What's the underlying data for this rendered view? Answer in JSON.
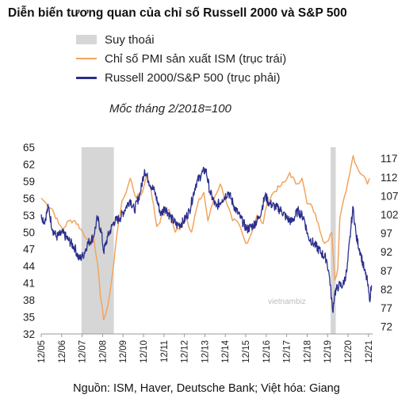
{
  "title": "Diễn biến tương quan của chỉ số Russell 2000 và S&P 500",
  "legend": {
    "recession": "Suy thoái",
    "pmi": "Chỉ số PMI sản xuất ISM (trục trái)",
    "russell": "Russell 2000/S&P 500 (trục phải)"
  },
  "note": "Mốc tháng 2/2018=100",
  "source": "Nguồn: ISM, Haver, Deutsche Bank; Việt hóa: Giang",
  "watermark": "vietnambiz",
  "colors": {
    "pmi": "#f2a45e",
    "russell": "#2b2e8c",
    "recession": "#d6d6d6"
  },
  "chart_data": {
    "type": "line",
    "x_tick_labels": [
      "12/05",
      "12/06",
      "12/07",
      "12/08",
      "12/09",
      "12/10",
      "12/11",
      "12/12",
      "12/13",
      "12/14",
      "12/15",
      "12/16",
      "12/17",
      "12/18",
      "12/19",
      "12/20",
      "12/21"
    ],
    "left_axis": {
      "ticks": [
        "65",
        "62",
        "59",
        "56",
        "53",
        "50",
        "47",
        "44",
        "41",
        "38",
        "35",
        "32"
      ],
      "ylim": [
        32,
        65
      ]
    },
    "right_axis": {
      "ticks": [
        "117",
        "112",
        "107",
        "102",
        "97",
        "92",
        "87",
        "82",
        "77",
        "72"
      ],
      "ylim": [
        70,
        120
      ]
    },
    "recessions": [
      {
        "start": 2007.92,
        "end": 2009.5
      },
      {
        "start": 2020.1,
        "end": 2020.35
      }
    ],
    "series": [
      {
        "name": "Chỉ số PMI sản xuất ISM (trục trái)",
        "axis": "left",
        "points": [
          [
            2005.95,
            56
          ],
          [
            2006.2,
            55
          ],
          [
            2006.5,
            54
          ],
          [
            2006.8,
            51.5
          ],
          [
            2007.0,
            50.5
          ],
          [
            2007.3,
            52
          ],
          [
            2007.6,
            52
          ],
          [
            2007.9,
            50.5
          ],
          [
            2008.1,
            49
          ],
          [
            2008.3,
            48.5
          ],
          [
            2008.5,
            49.5
          ],
          [
            2008.7,
            44.5
          ],
          [
            2008.85,
            38.5
          ],
          [
            2009.0,
            34.5
          ],
          [
            2009.1,
            35.5
          ],
          [
            2009.3,
            39
          ],
          [
            2009.5,
            44.5
          ],
          [
            2009.7,
            51
          ],
          [
            2009.9,
            55.5
          ],
          [
            2010.1,
            57
          ],
          [
            2010.3,
            59.5
          ],
          [
            2010.6,
            56
          ],
          [
            2010.9,
            57
          ],
          [
            2011.1,
            60
          ],
          [
            2011.3,
            58
          ],
          [
            2011.6,
            51
          ],
          [
            2011.9,
            53
          ],
          [
            2012.2,
            54
          ],
          [
            2012.5,
            50
          ],
          [
            2012.8,
            51
          ],
          [
            2013.0,
            53
          ],
          [
            2013.3,
            50
          ],
          [
            2013.6,
            55
          ],
          [
            2013.9,
            57
          ],
          [
            2014.1,
            52
          ],
          [
            2014.4,
            56
          ],
          [
            2014.7,
            58.5
          ],
          [
            2014.95,
            56
          ],
          [
            2015.3,
            52
          ],
          [
            2015.6,
            51.5
          ],
          [
            2015.95,
            48
          ],
          [
            2016.2,
            49.5
          ],
          [
            2016.5,
            53
          ],
          [
            2016.8,
            51.5
          ],
          [
            2017.0,
            55
          ],
          [
            2017.3,
            57
          ],
          [
            2017.6,
            58
          ],
          [
            2017.9,
            59
          ],
          [
            2018.1,
            60.5
          ],
          [
            2018.4,
            58.5
          ],
          [
            2018.7,
            59.5
          ],
          [
            2018.95,
            55
          ],
          [
            2019.2,
            54.5
          ],
          [
            2019.5,
            51.5
          ],
          [
            2019.8,
            48
          ],
          [
            2020.0,
            48.5
          ],
          [
            2020.15,
            50
          ],
          [
            2020.3,
            41.5
          ],
          [
            2020.45,
            43.5
          ],
          [
            2020.55,
            52.5
          ],
          [
            2020.75,
            56
          ],
          [
            2020.95,
            59
          ],
          [
            2021.2,
            63.5
          ],
          [
            2021.45,
            61
          ],
          [
            2021.7,
            60
          ],
          [
            2021.9,
            58.5
          ],
          [
            2022.0,
            59.5
          ]
        ]
      },
      {
        "name": "Russell 2000/S&P 500 (trục phải)",
        "axis": "right",
        "points": [
          [
            2005.95,
            102
          ],
          [
            2006.1,
            100
          ],
          [
            2006.3,
            104
          ],
          [
            2006.5,
            98
          ],
          [
            2006.7,
            96
          ],
          [
            2007.0,
            97
          ],
          [
            2007.3,
            95
          ],
          [
            2007.6,
            93
          ],
          [
            2007.8,
            90
          ],
          [
            2008.0,
            91
          ],
          [
            2008.2,
            94
          ],
          [
            2008.5,
            96
          ],
          [
            2008.7,
            101
          ],
          [
            2008.9,
            97
          ],
          [
            2009.0,
            92
          ],
          [
            2009.2,
            96
          ],
          [
            2009.5,
            100
          ],
          [
            2009.8,
            101
          ],
          [
            2010.1,
            104
          ],
          [
            2010.3,
            106
          ],
          [
            2010.5,
            103
          ],
          [
            2010.8,
            108
          ],
          [
            2011.0,
            114
          ],
          [
            2011.2,
            111
          ],
          [
            2011.5,
            108
          ],
          [
            2011.8,
            102
          ],
          [
            2012.0,
            104
          ],
          [
            2012.3,
            101
          ],
          [
            2012.6,
            99
          ],
          [
            2012.9,
            100
          ],
          [
            2013.2,
            103
          ],
          [
            2013.5,
            110
          ],
          [
            2013.8,
            113
          ],
          [
            2014.0,
            114
          ],
          [
            2014.2,
            108
          ],
          [
            2014.5,
            104
          ],
          [
            2014.8,
            106
          ],
          [
            2015.1,
            108
          ],
          [
            2015.4,
            104
          ],
          [
            2015.7,
            101
          ],
          [
            2016.0,
            98
          ],
          [
            2016.3,
            99
          ],
          [
            2016.6,
            101
          ],
          [
            2016.9,
            107
          ],
          [
            2017.1,
            105
          ],
          [
            2017.4,
            104
          ],
          [
            2017.7,
            103
          ],
          [
            2017.95,
            101
          ],
          [
            2018.2,
            100
          ],
          [
            2018.5,
            103
          ],
          [
            2018.8,
            101
          ],
          [
            2019.0,
            96
          ],
          [
            2019.3,
            94
          ],
          [
            2019.6,
            92
          ],
          [
            2019.9,
            90
          ],
          [
            2020.05,
            85
          ],
          [
            2020.2,
            76
          ],
          [
            2020.3,
            81
          ],
          [
            2020.5,
            83
          ],
          [
            2020.7,
            83
          ],
          [
            2020.9,
            87
          ],
          [
            2021.1,
            99
          ],
          [
            2021.2,
            104
          ],
          [
            2021.35,
            96
          ],
          [
            2021.55,
            92
          ],
          [
            2021.75,
            87
          ],
          [
            2021.9,
            84
          ],
          [
            2022.0,
            79
          ],
          [
            2022.1,
            83
          ]
        ]
      }
    ]
  }
}
